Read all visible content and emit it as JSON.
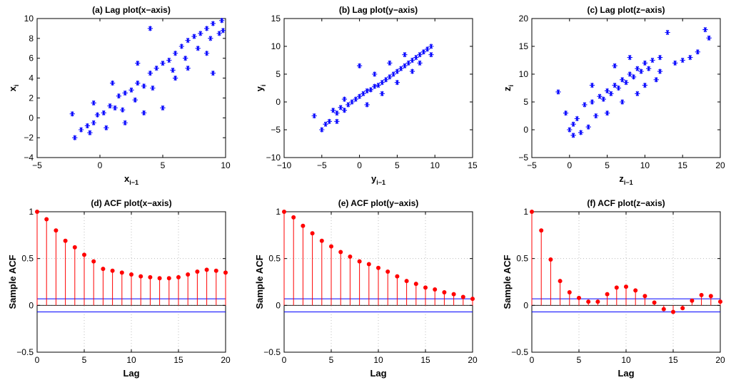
{
  "figure_caption": "",
  "colors": {
    "scatter": "#0000ff",
    "stem": "#ff0000",
    "bounds": "#0000ff",
    "grid": "#b0b0b0",
    "axis": "#000000"
  },
  "chart_data": [
    {
      "id": "a",
      "type": "scatter",
      "title": "(a) Lag plot(x−axis)",
      "xlabel": "x",
      "xlabel_sub": "i−1",
      "ylabel": "x",
      "ylabel_sub": "i",
      "xlim": [
        -5,
        10
      ],
      "ylim": [
        -4,
        10
      ],
      "xticks": [
        -5,
        0,
        5,
        10
      ],
      "yticks": [
        -4,
        -2,
        0,
        2,
        4,
        6,
        8,
        10
      ],
      "xtick_labels": [
        "−5",
        "0",
        "5",
        "10"
      ],
      "ytick_labels": [
        "−4",
        "−2",
        "0",
        "2",
        "4",
        "6",
        "8",
        "10"
      ],
      "marker": "*",
      "points": [
        [
          -2.0,
          -2.0
        ],
        [
          -1.5,
          -1.2
        ],
        [
          -1.0,
          -0.8
        ],
        [
          -0.5,
          -0.5
        ],
        [
          -0.2,
          0.3
        ],
        [
          0.3,
          0.5
        ],
        [
          0.8,
          1.2
        ],
        [
          1.2,
          1.0
        ],
        [
          1.5,
          2.2
        ],
        [
          2.0,
          2.5
        ],
        [
          2.5,
          2.8
        ],
        [
          3.0,
          3.5
        ],
        [
          3.5,
          3.2
        ],
        [
          4.0,
          4.5
        ],
        [
          4.5,
          5.0
        ],
        [
          5.0,
          5.5
        ],
        [
          5.5,
          5.8
        ],
        [
          6.0,
          6.5
        ],
        [
          6.5,
          7.2
        ],
        [
          7.0,
          7.8
        ],
        [
          7.5,
          8.2
        ],
        [
          8.0,
          8.5
        ],
        [
          8.5,
          9.0
        ],
        [
          9.0,
          9.5
        ],
        [
          9.5,
          8.5
        ],
        [
          -2.2,
          0.4
        ],
        [
          -0.5,
          1.5
        ],
        [
          1.0,
          3.5
        ],
        [
          3.0,
          5.5
        ],
        [
          4.0,
          9.0
        ],
        [
          6.0,
          4.0
        ],
        [
          7.0,
          5.0
        ],
        [
          8.5,
          6.5
        ],
        [
          9.0,
          4.5
        ],
        [
          5.0,
          1.0
        ],
        [
          3.5,
          0.5
        ],
        [
          2.0,
          -0.5
        ],
        [
          -0.8,
          -1.5
        ],
        [
          0.5,
          -1.0
        ],
        [
          1.8,
          0.8
        ],
        [
          2.8,
          1.8
        ],
        [
          4.2,
          3.0
        ],
        [
          5.8,
          4.8
        ],
        [
          6.8,
          6.0
        ],
        [
          7.8,
          7.0
        ],
        [
          8.8,
          8.0
        ],
        [
          9.7,
          9.8
        ],
        [
          9.8,
          8.8
        ]
      ]
    },
    {
      "id": "b",
      "type": "scatter",
      "title": "(b) Lag plot(y−axis)",
      "xlabel": "y",
      "xlabel_sub": "i−1",
      "ylabel": "y",
      "ylabel_sub": "i",
      "xlim": [
        -10,
        15
      ],
      "ylim": [
        -10,
        15
      ],
      "xticks": [
        -10,
        -5,
        0,
        5,
        10,
        15
      ],
      "yticks": [
        -10,
        -5,
        0,
        5,
        10,
        15
      ],
      "xtick_labels": [
        "−10",
        "−5",
        "0",
        "5",
        "10",
        "15"
      ],
      "ytick_labels": [
        "−10",
        "−5",
        "0",
        "5",
        "10",
        "15"
      ],
      "marker": "*",
      "points": [
        [
          -6.0,
          -2.5
        ],
        [
          -5.0,
          -5.0
        ],
        [
          -4.0,
          -3.5
        ],
        [
          -3.5,
          -1.5
        ],
        [
          -3.0,
          -2.0
        ],
        [
          -2.5,
          -1.0
        ],
        [
          -2.0,
          -1.5
        ],
        [
          -1.5,
          -0.5
        ],
        [
          -1.0,
          0.0
        ],
        [
          -0.5,
          0.5
        ],
        [
          0.0,
          1.0
        ],
        [
          0.5,
          1.5
        ],
        [
          1.0,
          2.0
        ],
        [
          1.5,
          2.2
        ],
        [
          2.0,
          2.8
        ],
        [
          2.5,
          3.0
        ],
        [
          3.0,
          3.5
        ],
        [
          3.5,
          4.0
        ],
        [
          4.0,
          4.5
        ],
        [
          4.5,
          5.0
        ],
        [
          5.0,
          5.5
        ],
        [
          5.5,
          6.0
        ],
        [
          6.0,
          6.5
        ],
        [
          6.5,
          7.0
        ],
        [
          7.0,
          7.5
        ],
        [
          7.5,
          8.0
        ],
        [
          8.0,
          8.5
        ],
        [
          8.5,
          9.0
        ],
        [
          9.0,
          9.5
        ],
        [
          9.5,
          10.0
        ],
        [
          0.0,
          6.5
        ],
        [
          -2.0,
          0.5
        ],
        [
          1.0,
          -0.5
        ],
        [
          3.0,
          1.5
        ],
        [
          5.0,
          3.5
        ],
        [
          7.0,
          5.5
        ],
        [
          2.0,
          5.0
        ],
        [
          4.0,
          7.0
        ],
        [
          6.0,
          8.5
        ],
        [
          8.0,
          7.0
        ],
        [
          9.5,
          8.5
        ],
        [
          -4.5,
          -4.0
        ],
        [
          -3.0,
          -3.5
        ]
      ]
    },
    {
      "id": "c",
      "type": "scatter",
      "title": "(c) Lag plot(z−axis)",
      "xlabel": "z",
      "xlabel_sub": "i−1",
      "ylabel": "z",
      "ylabel_sub": "i",
      "xlim": [
        -5,
        20
      ],
      "ylim": [
        -5,
        20
      ],
      "xticks": [
        -5,
        0,
        5,
        10,
        15,
        20
      ],
      "yticks": [
        -5,
        0,
        5,
        10,
        15,
        20
      ],
      "xtick_labels": [
        "−5",
        "0",
        "5",
        "10",
        "15",
        "20"
      ],
      "ytick_labels": [
        "−5",
        "0",
        "5",
        "10",
        "15",
        "20"
      ],
      "marker": "*",
      "points": [
        [
          -1.5,
          6.8
        ],
        [
          -0.5,
          3.0
        ],
        [
          0.0,
          0.0
        ],
        [
          0.5,
          1.0
        ],
        [
          1.0,
          2.0
        ],
        [
          1.5,
          -0.5
        ],
        [
          2.0,
          4.5
        ],
        [
          3.0,
          5.0
        ],
        [
          3.5,
          2.5
        ],
        [
          4.0,
          6.0
        ],
        [
          4.5,
          5.5
        ],
        [
          5.0,
          7.0
        ],
        [
          5.5,
          6.5
        ],
        [
          6.0,
          8.0
        ],
        [
          6.5,
          7.5
        ],
        [
          7.0,
          9.0
        ],
        [
          7.5,
          8.5
        ],
        [
          8.0,
          10.0
        ],
        [
          8.5,
          9.5
        ],
        [
          9.0,
          11.0
        ],
        [
          9.5,
          10.5
        ],
        [
          10.0,
          12.0
        ],
        [
          10.5,
          11.0
        ],
        [
          11.0,
          12.5
        ],
        [
          11.5,
          9.0
        ],
        [
          12.0,
          13.0
        ],
        [
          13.0,
          17.5
        ],
        [
          14.0,
          12.0
        ],
        [
          15.0,
          12.5
        ],
        [
          16.0,
          13.0
        ],
        [
          17.0,
          14.0
        ],
        [
          18.0,
          18.0
        ],
        [
          18.5,
          16.5
        ],
        [
          5.0,
          3.0
        ],
        [
          7.0,
          5.0
        ],
        [
          9.0,
          6.5
        ],
        [
          6.0,
          11.5
        ],
        [
          8.0,
          13.0
        ],
        [
          10.0,
          8.0
        ],
        [
          12.0,
          10.5
        ],
        [
          3.0,
          8.0
        ],
        [
          2.5,
          0.5
        ],
        [
          0.5,
          -1.0
        ]
      ]
    },
    {
      "id": "d",
      "type": "stem",
      "title": "(d) ACF plot(x−axis)",
      "xlabel": "Lag",
      "ylabel": "Sample ACF",
      "xlim": [
        0,
        20
      ],
      "ylim": [
        -0.5,
        1
      ],
      "xticks": [
        0,
        5,
        10,
        15,
        20
      ],
      "yticks": [
        -0.5,
        0,
        0.5,
        1
      ],
      "xtick_labels": [
        "0",
        "5",
        "10",
        "15",
        "20"
      ],
      "ytick_labels": [
        "−0.5",
        "0",
        "0.5",
        "1"
      ],
      "conf_bounds": [
        0.07,
        -0.07
      ],
      "lags": [
        0,
        1,
        2,
        3,
        4,
        5,
        6,
        7,
        8,
        9,
        10,
        11,
        12,
        13,
        14,
        15,
        16,
        17,
        18,
        19,
        20
      ],
      "values": [
        1.0,
        0.92,
        0.8,
        0.69,
        0.62,
        0.54,
        0.47,
        0.39,
        0.37,
        0.35,
        0.33,
        0.31,
        0.3,
        0.29,
        0.29,
        0.3,
        0.33,
        0.36,
        0.38,
        0.37,
        0.35
      ]
    },
    {
      "id": "e",
      "type": "stem",
      "title": "(e) ACF plot(y−axis)",
      "xlabel": "Lag",
      "ylabel": "Sample ACF",
      "xlim": [
        0,
        20
      ],
      "ylim": [
        -0.5,
        1
      ],
      "xticks": [
        0,
        5,
        10,
        15,
        20
      ],
      "yticks": [
        -0.5,
        0,
        0.5,
        1
      ],
      "xtick_labels": [
        "0",
        "5",
        "10",
        "15",
        "20"
      ],
      "ytick_labels": [
        "−0.5",
        "0",
        "0.5",
        "1"
      ],
      "conf_bounds": [
        0.07,
        -0.07
      ],
      "lags": [
        0,
        1,
        2,
        3,
        4,
        5,
        6,
        7,
        8,
        9,
        10,
        11,
        12,
        13,
        14,
        15,
        16,
        17,
        18,
        19,
        20
      ],
      "values": [
        1.0,
        0.94,
        0.85,
        0.77,
        0.69,
        0.63,
        0.57,
        0.52,
        0.47,
        0.44,
        0.4,
        0.36,
        0.31,
        0.26,
        0.23,
        0.19,
        0.17,
        0.14,
        0.12,
        0.09,
        0.07
      ]
    },
    {
      "id": "f",
      "type": "stem",
      "title": "(f) ACF plot(z−axis)",
      "xlabel": "Lag",
      "ylabel": "Sample ACF",
      "xlim": [
        0,
        20
      ],
      "ylim": [
        -0.5,
        1
      ],
      "xticks": [
        0,
        5,
        10,
        15,
        20
      ],
      "yticks": [
        -0.5,
        0,
        0.5,
        1
      ],
      "xtick_labels": [
        "0",
        "5",
        "10",
        "15",
        "20"
      ],
      "ytick_labels": [
        "−0.5",
        "0",
        "0.5",
        "1"
      ],
      "conf_bounds": [
        0.07,
        -0.07
      ],
      "lags": [
        0,
        1,
        2,
        3,
        4,
        5,
        6,
        7,
        8,
        9,
        10,
        11,
        12,
        13,
        14,
        15,
        16,
        17,
        18,
        19,
        20
      ],
      "values": [
        1.0,
        0.8,
        0.49,
        0.26,
        0.14,
        0.08,
        0.04,
        0.04,
        0.12,
        0.19,
        0.2,
        0.16,
        0.1,
        0.03,
        -0.04,
        -0.07,
        -0.03,
        0.05,
        0.11,
        0.1,
        0.04
      ]
    }
  ]
}
